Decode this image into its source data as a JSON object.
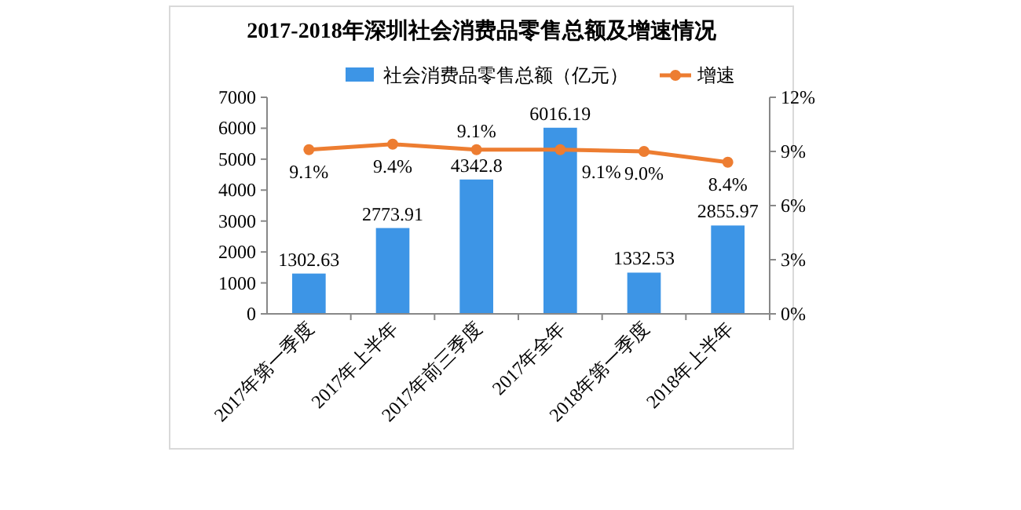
{
  "chart_data": {
    "type": "bar",
    "title": "2017-2018年深圳社会消费品零售总额及增速情况",
    "categories": [
      "2017年第一季度",
      "2017年上半年",
      "2017年前三季度",
      "2017年全年",
      "2018年第一季度",
      "2018年上半年"
    ],
    "series": [
      {
        "name": "社会消费品零售总额（亿元）",
        "color": "#3d95e6",
        "values": [
          1302.63,
          2773.91,
          4342.8,
          6016.19,
          1332.53,
          2855.97
        ],
        "value_labels": [
          "1302.63",
          "2773.91",
          "4342.8",
          "6016.19",
          "1332.53",
          "2855.97"
        ]
      },
      {
        "name": "增速",
        "type": "line",
        "axis": "y2",
        "color": "#ed7d31",
        "marker": "circle",
        "values": [
          9.1,
          9.4,
          9.1,
          9.1,
          9.0,
          8.4
        ],
        "value_labels": [
          "9.1%",
          "9.4%",
          "9.1%",
          "9.1%",
          "9.0%",
          "8.4%"
        ]
      }
    ],
    "ylim": [
      0,
      7000
    ],
    "yticks": [
      0,
      1000,
      2000,
      3000,
      4000,
      5000,
      6000,
      7000
    ],
    "y2lim": [
      0,
      12
    ],
    "y2ticks": [
      {
        "value": 0,
        "label": "0%"
      },
      {
        "value": 3,
        "label": "3%"
      },
      {
        "value": 6,
        "label": "6%"
      },
      {
        "value": 9,
        "label": "9%"
      },
      {
        "value": 12,
        "label": "12%"
      }
    ],
    "grid": false,
    "legend": "top"
  }
}
